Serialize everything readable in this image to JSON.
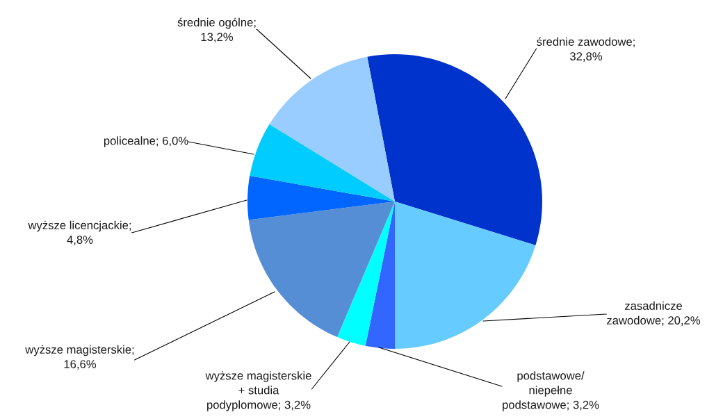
{
  "chart_data": {
    "type": "pie",
    "categories": [
      "średnie zawodowe; 32,8%",
      "zasadnicze zawodowe; 20,2%",
      "podstawowe/niepełne podstawowe; 3,2%",
      "wyższe magisterskie + studia podyplomowe; 3,2%",
      "wyższe magisterskie; 16,6%",
      "wyższe licencjackie; 4,8%",
      "policealne; 6,0%",
      "średnie ogólne; 13,2%"
    ],
    "values": [
      32.8,
      20.2,
      3.2,
      3.2,
      16.6,
      4.8,
      6.0,
      13.2
    ],
    "colors": [
      "#0033cc",
      "#66ccff",
      "#3366ff",
      "#00ffff",
      "#558ed5",
      "#0066ff",
      "#00ccff",
      "#99ccff"
    ],
    "legend": false
  }
}
